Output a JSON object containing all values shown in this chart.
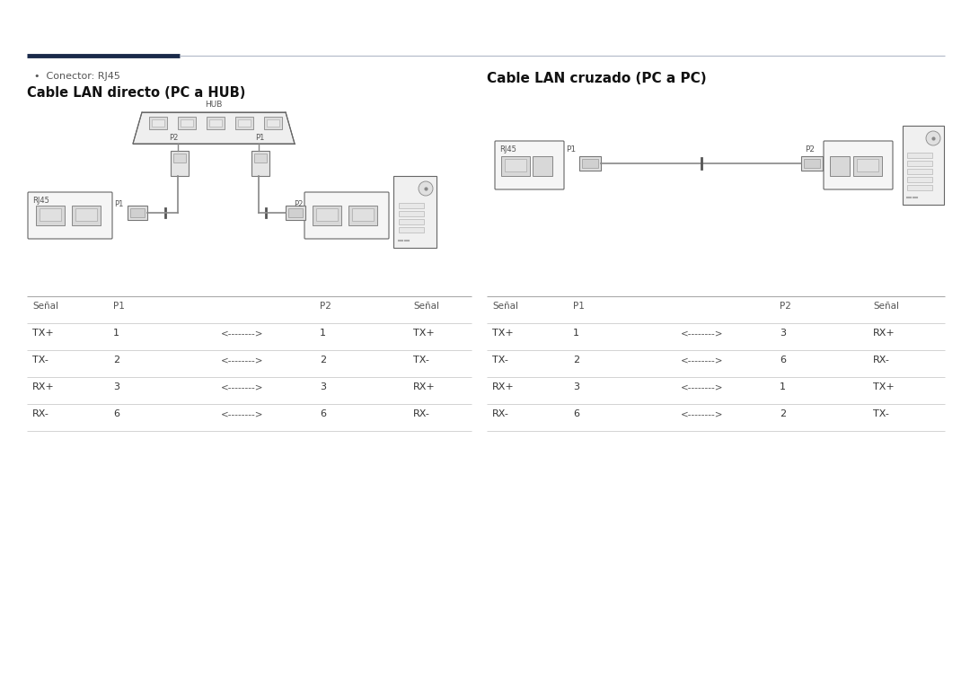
{
  "bg_color": "#ffffff",
  "title_left": "Cable LAN directo (PC a HUB)",
  "title_right": "Cable LAN cruzado (PC a PC)",
  "bullet_text": "Conector: RJ45",
  "header_line_color": "#1a2a4a",
  "line_color_thin": "#b0b8c8",
  "text_color": "#333333",
  "label_color": "#666666",
  "table_left": {
    "headers": [
      "Señal",
      "P1",
      "",
      "P2",
      "Señal"
    ],
    "rows": [
      [
        "TX+",
        "1",
        "<-------->",
        "1",
        "TX+"
      ],
      [
        "TX-",
        "2",
        "<-------->",
        "2",
        "TX-"
      ],
      [
        "RX+",
        "3",
        "<-------->",
        "3",
        "RX+"
      ],
      [
        "RX-",
        "6",
        "<-------->",
        "6",
        "RX-"
      ]
    ]
  },
  "table_right": {
    "headers": [
      "Señal",
      "P1",
      "",
      "P2",
      "Señal"
    ],
    "rows": [
      [
        "TX+",
        "1",
        "<-------->",
        "3",
        "RX+"
      ],
      [
        "TX-",
        "2",
        "<-------->",
        "6",
        "RX-"
      ],
      [
        "RX+",
        "3",
        "<-------->",
        "1",
        "TX+"
      ],
      [
        "RX-",
        "6",
        "<-------->",
        "2",
        "TX-"
      ]
    ]
  },
  "font_size_title": 10.5,
  "font_size_body": 7.5,
  "font_size_bullet": 8,
  "font_size_small": 6
}
